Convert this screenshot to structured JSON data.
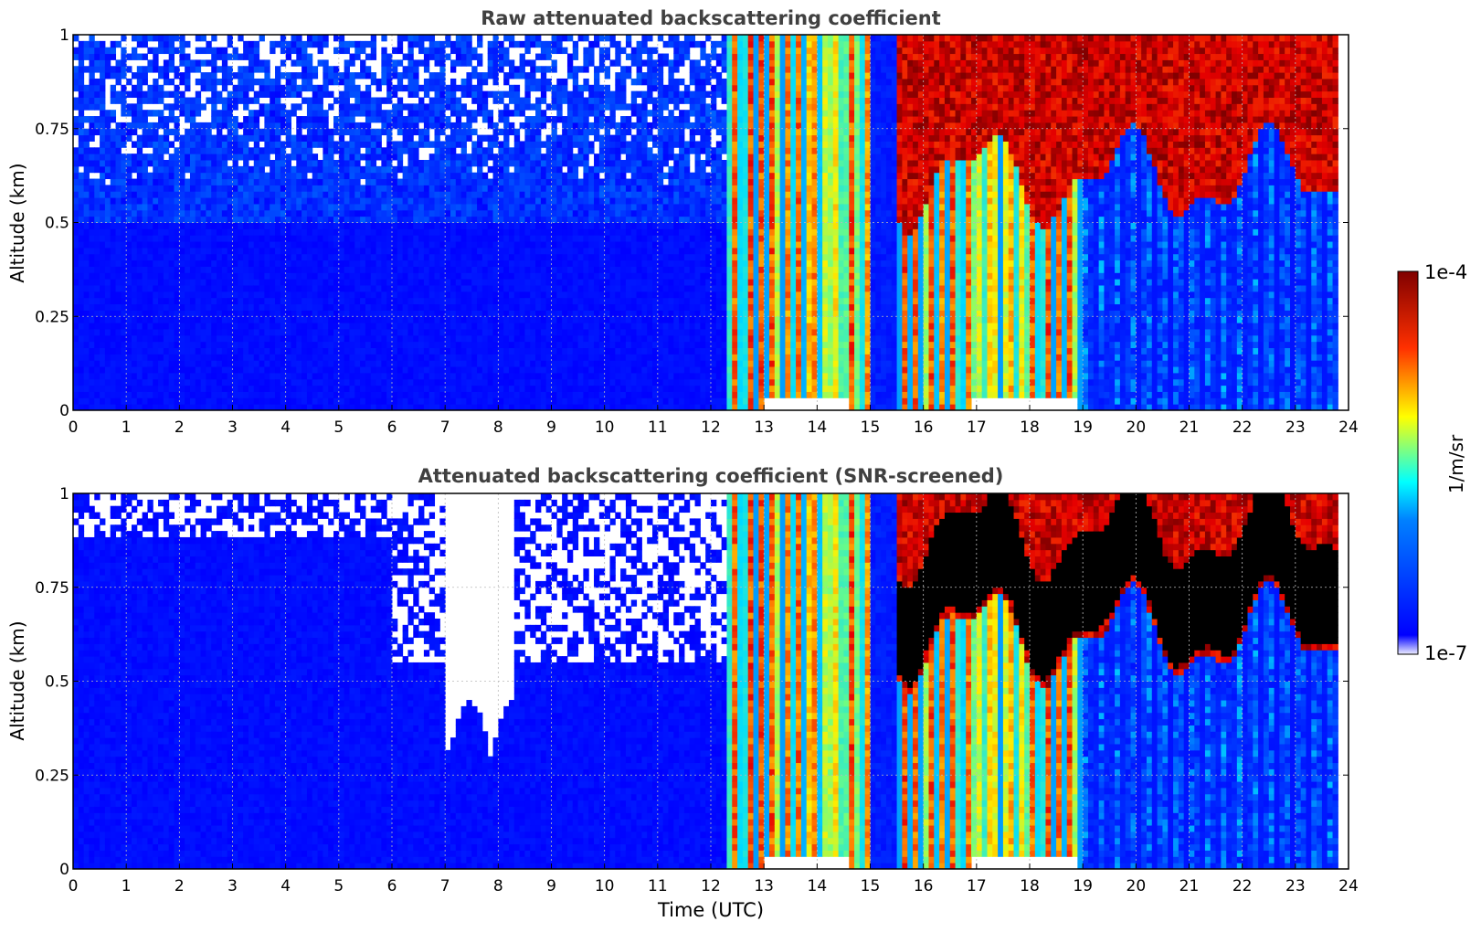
{
  "chart_data": [
    {
      "type": "heatmap",
      "title": "Raw attenuated backscattering coefficient",
      "xlabel": "",
      "ylabel": "Altitude (km)",
      "xlim": [
        0,
        24
      ],
      "ylim": [
        0,
        1
      ],
      "x_ticks": [
        "0",
        "1",
        "2",
        "3",
        "4",
        "5",
        "6",
        "7",
        "8",
        "9",
        "10",
        "11",
        "12",
        "13",
        "14",
        "15",
        "16",
        "17",
        "18",
        "19",
        "20",
        "21",
        "22",
        "23",
        "24"
      ],
      "y_ticks": [
        "0",
        "0.25",
        "0.5",
        "0.75",
        "1"
      ],
      "grid": true,
      "colormap": "jet",
      "features": [
        {
          "time_range": [
            0,
            12.3
          ],
          "altitude_range": [
            0,
            1
          ],
          "level": "low (~1e-7 to 1e-6), noisy above 0.5 km"
        },
        {
          "time_range": [
            12.3,
            15.0
          ],
          "altitude_range": [
            0,
            1
          ],
          "level": "high (~1e-5 to 1e-4), vertical streaks"
        },
        {
          "time_range": [
            15.5,
            23.8
          ],
          "altitude_range": [
            0.55,
            1
          ],
          "level": "cloud layer ~1e-4"
        },
        {
          "time_range": [
            15.5,
            19.0
          ],
          "altitude_range": [
            0,
            1
          ],
          "level": "high (~1e-5), vertical streaks"
        }
      ]
    },
    {
      "type": "heatmap",
      "title": "Attenuated backscattering coefficient (SNR-screened)",
      "xlabel": "Time (UTC)",
      "ylabel": "Altitude (km)",
      "xlim": [
        0,
        24
      ],
      "ylim": [
        0,
        1
      ],
      "x_ticks": [
        "0",
        "1",
        "2",
        "3",
        "4",
        "5",
        "6",
        "7",
        "8",
        "9",
        "10",
        "11",
        "12",
        "13",
        "14",
        "15",
        "16",
        "17",
        "18",
        "19",
        "20",
        "21",
        "22",
        "23",
        "24"
      ],
      "y_ticks": [
        "0",
        "0.25",
        "0.5",
        "0.75",
        "1"
      ],
      "grid": true,
      "colormap": "jet",
      "features": [
        {
          "time_range": [
            7.0,
            8.3
          ],
          "altitude_range": [
            0.28,
            1
          ],
          "level": "screened out (no data)"
        },
        {
          "time_range": [
            12.3,
            15.0
          ],
          "altitude_range": [
            0,
            1
          ],
          "level": "high (~1e-5 to 1e-4)"
        },
        {
          "time_range": [
            15.5,
            23.8
          ],
          "altitude_range": [
            0.55,
            0.95
          ],
          "level": "saturated (>1e-4)"
        }
      ]
    }
  ],
  "colorbar": {
    "label": "1/m/sr",
    "max_label": "1e-4",
    "min_label": "1e-7",
    "colors": [
      "#e6e6fa",
      "#0000ff",
      "#00ffff",
      "#ffff00",
      "#ff0000",
      "#800000"
    ]
  }
}
